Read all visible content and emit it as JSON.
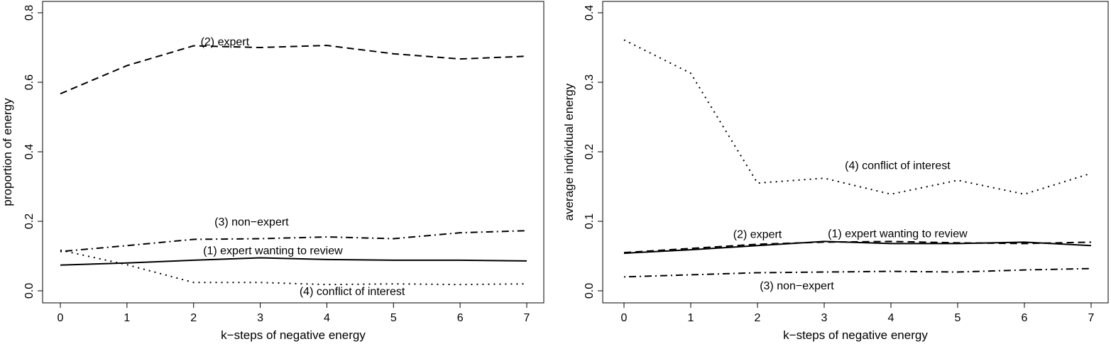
{
  "chart_data": [
    {
      "type": "line",
      "xlabel": "k−steps of negative energy",
      "ylabel": "proportion of energy",
      "xlim": [
        0,
        7
      ],
      "ylim": [
        0,
        0.8
      ],
      "x_ticks": [
        "0",
        "1",
        "2",
        "3",
        "4",
        "5",
        "6",
        "7"
      ],
      "y_ticks": [
        "0.0",
        "0.2",
        "0.4",
        "0.6",
        "0.8"
      ],
      "x": [
        0,
        1,
        2,
        3,
        4,
        5,
        6,
        7
      ],
      "series": [
        {
          "name": "(1) expert wanting to review",
          "style": "solid",
          "values": [
            0.074,
            0.08,
            0.088,
            0.095,
            0.09,
            0.088,
            0.088,
            0.086
          ]
        },
        {
          "name": "(2) expert",
          "style": "dashed",
          "values": [
            0.567,
            0.648,
            0.705,
            0.7,
            0.706,
            0.682,
            0.667,
            0.675
          ]
        },
        {
          "name": "(3) non−expert",
          "style": "dotdash",
          "values": [
            0.113,
            0.13,
            0.148,
            0.15,
            0.155,
            0.15,
            0.167,
            0.173
          ]
        },
        {
          "name": "(4) conflict of interest",
          "style": "dotted",
          "values": [
            0.117,
            0.075,
            0.024,
            0.024,
            0.018,
            0.02,
            0.018,
            0.02
          ]
        }
      ],
      "annotations": [
        {
          "text": "(2) expert",
          "x": 2.47,
          "y": 0.718
        },
        {
          "text": "(3) non−expert",
          "x": 2.87,
          "y": 0.2
        },
        {
          "text": "(1) expert wanting to review",
          "x": 3.19,
          "y": 0.117
        },
        {
          "text": "(4) conflict of interest",
          "x": 4.38,
          "y": 0.0
        }
      ]
    },
    {
      "type": "line",
      "xlabel": "k−steps of negative energy",
      "ylabel": "average individual energy",
      "xlim": [
        0,
        7
      ],
      "ylim": [
        0,
        0.4
      ],
      "x_ticks": [
        "0",
        "1",
        "2",
        "3",
        "4",
        "5",
        "6",
        "7"
      ],
      "y_ticks": [
        "0.0",
        "0.1",
        "0.2",
        "0.3",
        "0.4"
      ],
      "x": [
        0,
        1,
        2,
        3,
        4,
        5,
        6,
        7
      ],
      "series": [
        {
          "name": "(1) expert wanting to review",
          "style": "solid",
          "values": [
            0.054,
            0.059,
            0.065,
            0.071,
            0.068,
            0.068,
            0.07,
            0.065
          ]
        },
        {
          "name": "(2) expert",
          "style": "dashed",
          "values": [
            0.055,
            0.061,
            0.067,
            0.07,
            0.071,
            0.069,
            0.068,
            0.07
          ]
        },
        {
          "name": "(3) non−expert",
          "style": "dotdash",
          "values": [
            0.02,
            0.023,
            0.026,
            0.027,
            0.028,
            0.027,
            0.03,
            0.032
          ]
        },
        {
          "name": "(4) conflict of interest",
          "style": "dotted",
          "values": [
            0.361,
            0.313,
            0.155,
            0.162,
            0.139,
            0.159,
            0.139,
            0.169
          ]
        }
      ],
      "annotations": [
        {
          "text": "(4) conflict of interest",
          "x": 4.1,
          "y": 0.181
        },
        {
          "text": "(2) expert",
          "x": 2.0,
          "y": 0.082
        },
        {
          "text": "(1) expert wanting to review",
          "x": 4.1,
          "y": 0.083
        },
        {
          "text": "(3) non−expert",
          "x": 2.59,
          "y": 0.008
        }
      ]
    }
  ]
}
